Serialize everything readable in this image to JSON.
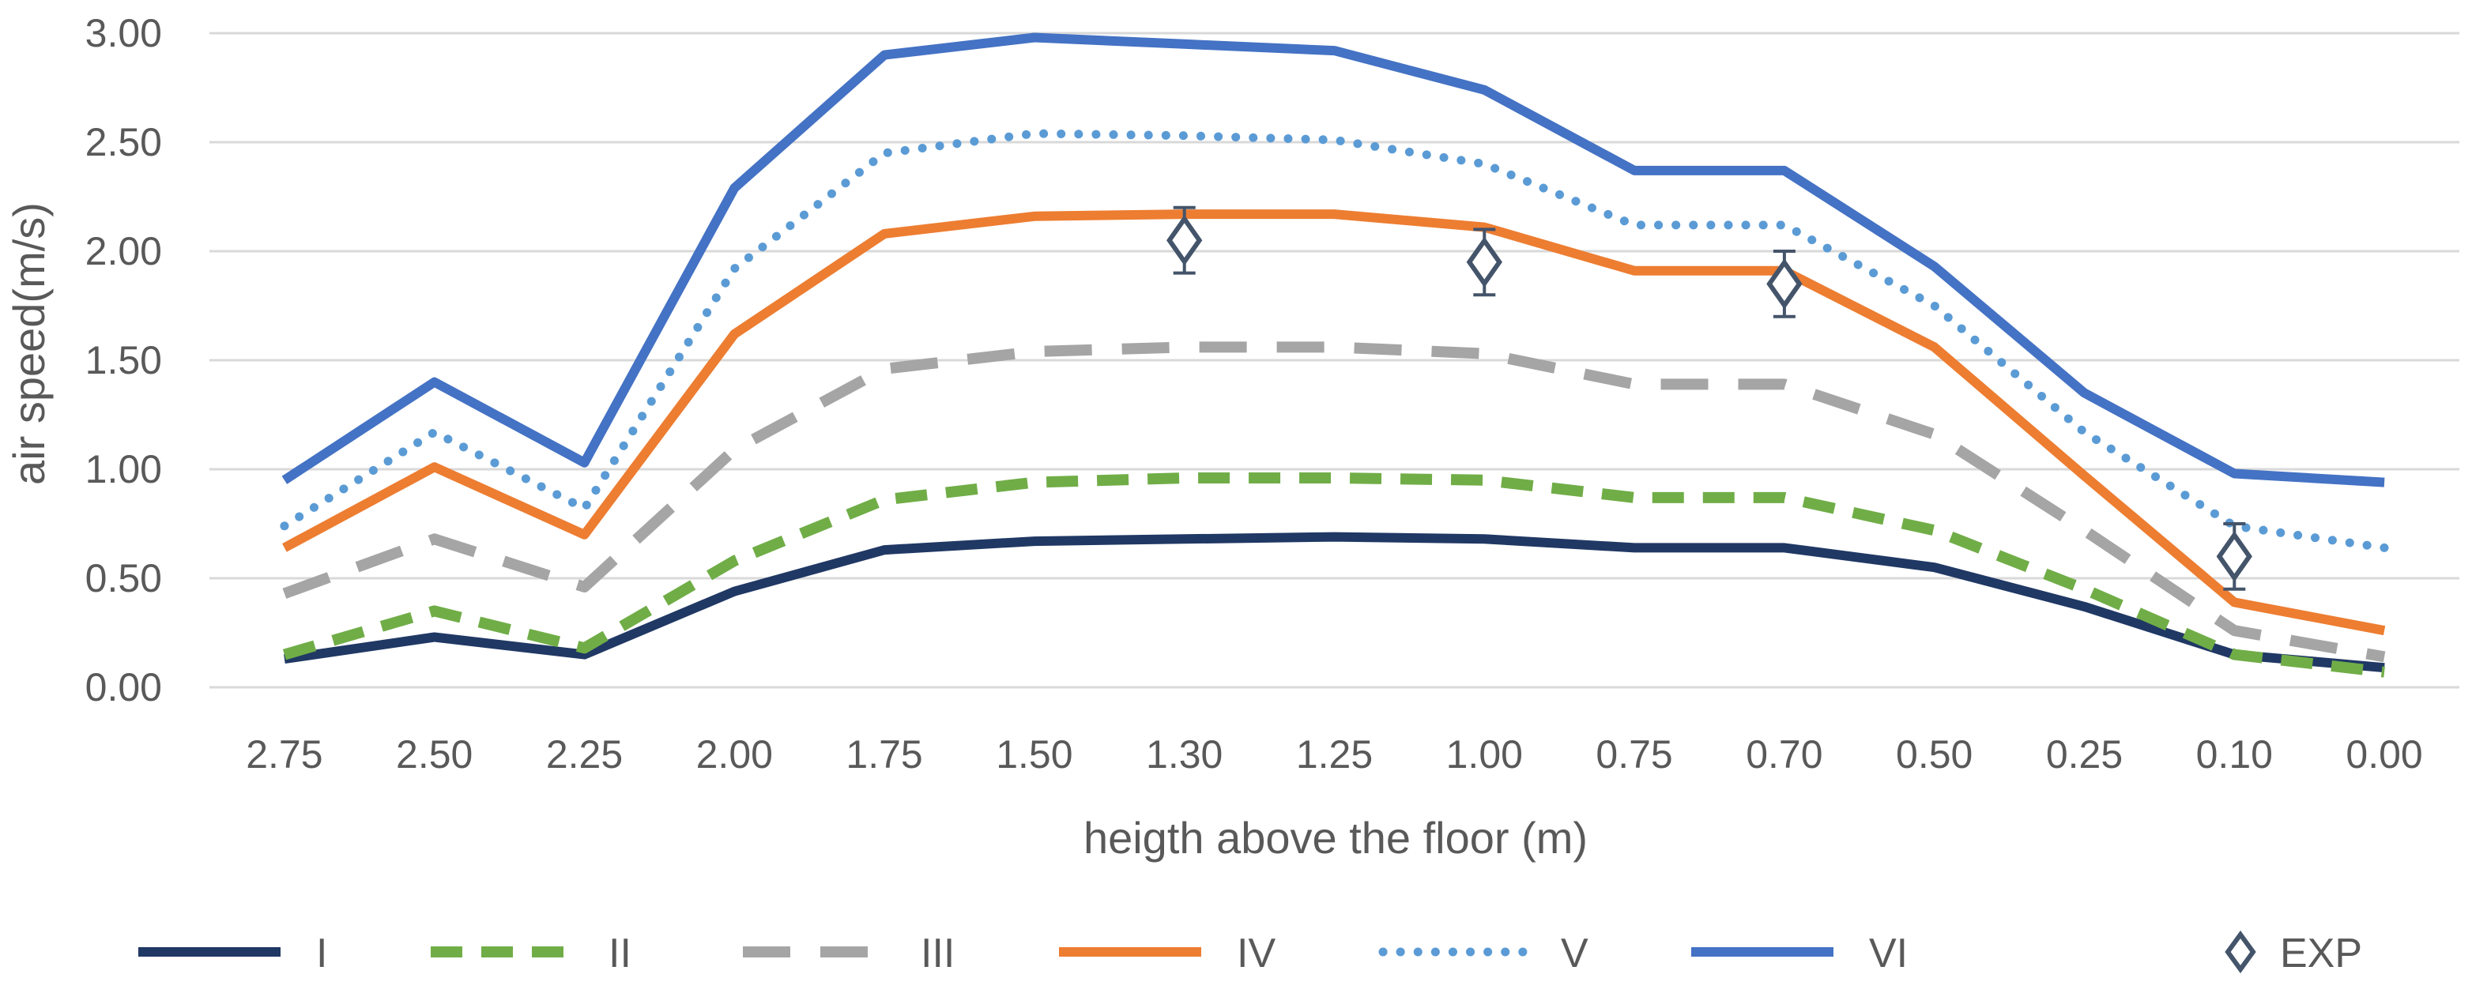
{
  "chart_data": {
    "type": "line",
    "title": "",
    "xlabel": "heigth above the floor (m)",
    "ylabel": "air speed(m/s)",
    "ylim": [
      0,
      3
    ],
    "yticks": [
      "0.00",
      "0.50",
      "1.00",
      "1.50",
      "2.00",
      "2.50",
      "3.00"
    ],
    "categories": [
      "2.75",
      "2.50",
      "2.25",
      "2.00",
      "1.75",
      "1.50",
      "1.30",
      "1.25",
      "1.00",
      "0.75",
      "0.70",
      "0.50",
      "0.25",
      "0.10",
      "0.00"
    ],
    "grid": true,
    "legend_position": "bottom",
    "series": [
      {
        "name": "I",
        "style": "solid",
        "color": "#203864",
        "values": [
          0.13,
          0.23,
          0.15,
          0.44,
          0.63,
          0.67,
          0.68,
          0.69,
          0.68,
          0.64,
          0.64,
          0.55,
          0.37,
          0.15,
          0.09
        ]
      },
      {
        "name": "II",
        "style": "dashed",
        "color": "#70ad47",
        "values": [
          0.15,
          0.35,
          0.18,
          0.58,
          0.86,
          0.94,
          0.96,
          0.96,
          0.95,
          0.87,
          0.87,
          0.72,
          0.45,
          0.15,
          0.07
        ]
      },
      {
        "name": "III",
        "style": "longdash",
        "color": "#a5a5a5",
        "values": [
          0.43,
          0.68,
          0.46,
          1.09,
          1.46,
          1.54,
          1.56,
          1.56,
          1.53,
          1.39,
          1.39,
          1.16,
          0.72,
          0.26,
          0.14
        ]
      },
      {
        "name": "IV",
        "style": "solid",
        "color": "#ed7d31",
        "values": [
          0.64,
          1.01,
          0.7,
          1.62,
          2.08,
          2.16,
          2.17,
          2.17,
          2.11,
          1.91,
          1.91,
          1.56,
          0.97,
          0.39,
          0.26
        ]
      },
      {
        "name": "V",
        "style": "dotted",
        "color": "#5b9bd5",
        "values": [
          0.74,
          1.17,
          0.82,
          1.92,
          2.45,
          2.54,
          2.53,
          2.51,
          2.4,
          2.12,
          2.12,
          1.75,
          1.17,
          0.74,
          0.64
        ]
      },
      {
        "name": "VI",
        "style": "solid",
        "color": "#4472c4",
        "values": [
          0.95,
          1.4,
          1.03,
          2.29,
          2.9,
          2.98,
          2.95,
          2.92,
          2.74,
          2.37,
          2.37,
          1.93,
          1.35,
          0.98,
          0.94
        ]
      }
    ],
    "experimental": {
      "name": "EXP",
      "color": "#44546a",
      "points": [
        {
          "x": "1.30",
          "y": 2.05,
          "err": 0.15
        },
        {
          "x": "1.00",
          "y": 1.95,
          "err": 0.15
        },
        {
          "x": "0.70",
          "y": 1.85,
          "err": 0.15
        },
        {
          "x": "0.10",
          "y": 0.6,
          "err": 0.15
        }
      ]
    }
  }
}
